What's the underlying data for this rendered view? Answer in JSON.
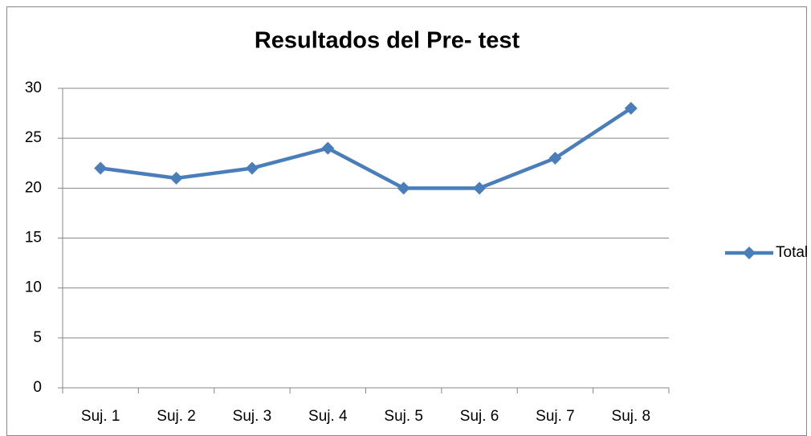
{
  "chart_data": {
    "type": "line",
    "title": "Resultados del Pre- test",
    "categories": [
      "Suj. 1",
      "Suj. 2",
      "Suj. 3",
      "Suj. 4",
      "Suj. 5",
      "Suj. 6",
      "Suj. 7",
      "Suj. 8"
    ],
    "series": [
      {
        "name": "Total",
        "color": "#4a7ebb",
        "values": [
          22,
          21,
          22,
          24,
          20,
          20,
          23,
          28
        ]
      }
    ],
    "ylim": [
      0,
      30
    ],
    "yticks": [
      0,
      5,
      10,
      15,
      20,
      25,
      30
    ],
    "grid": true,
    "legend": "right"
  }
}
